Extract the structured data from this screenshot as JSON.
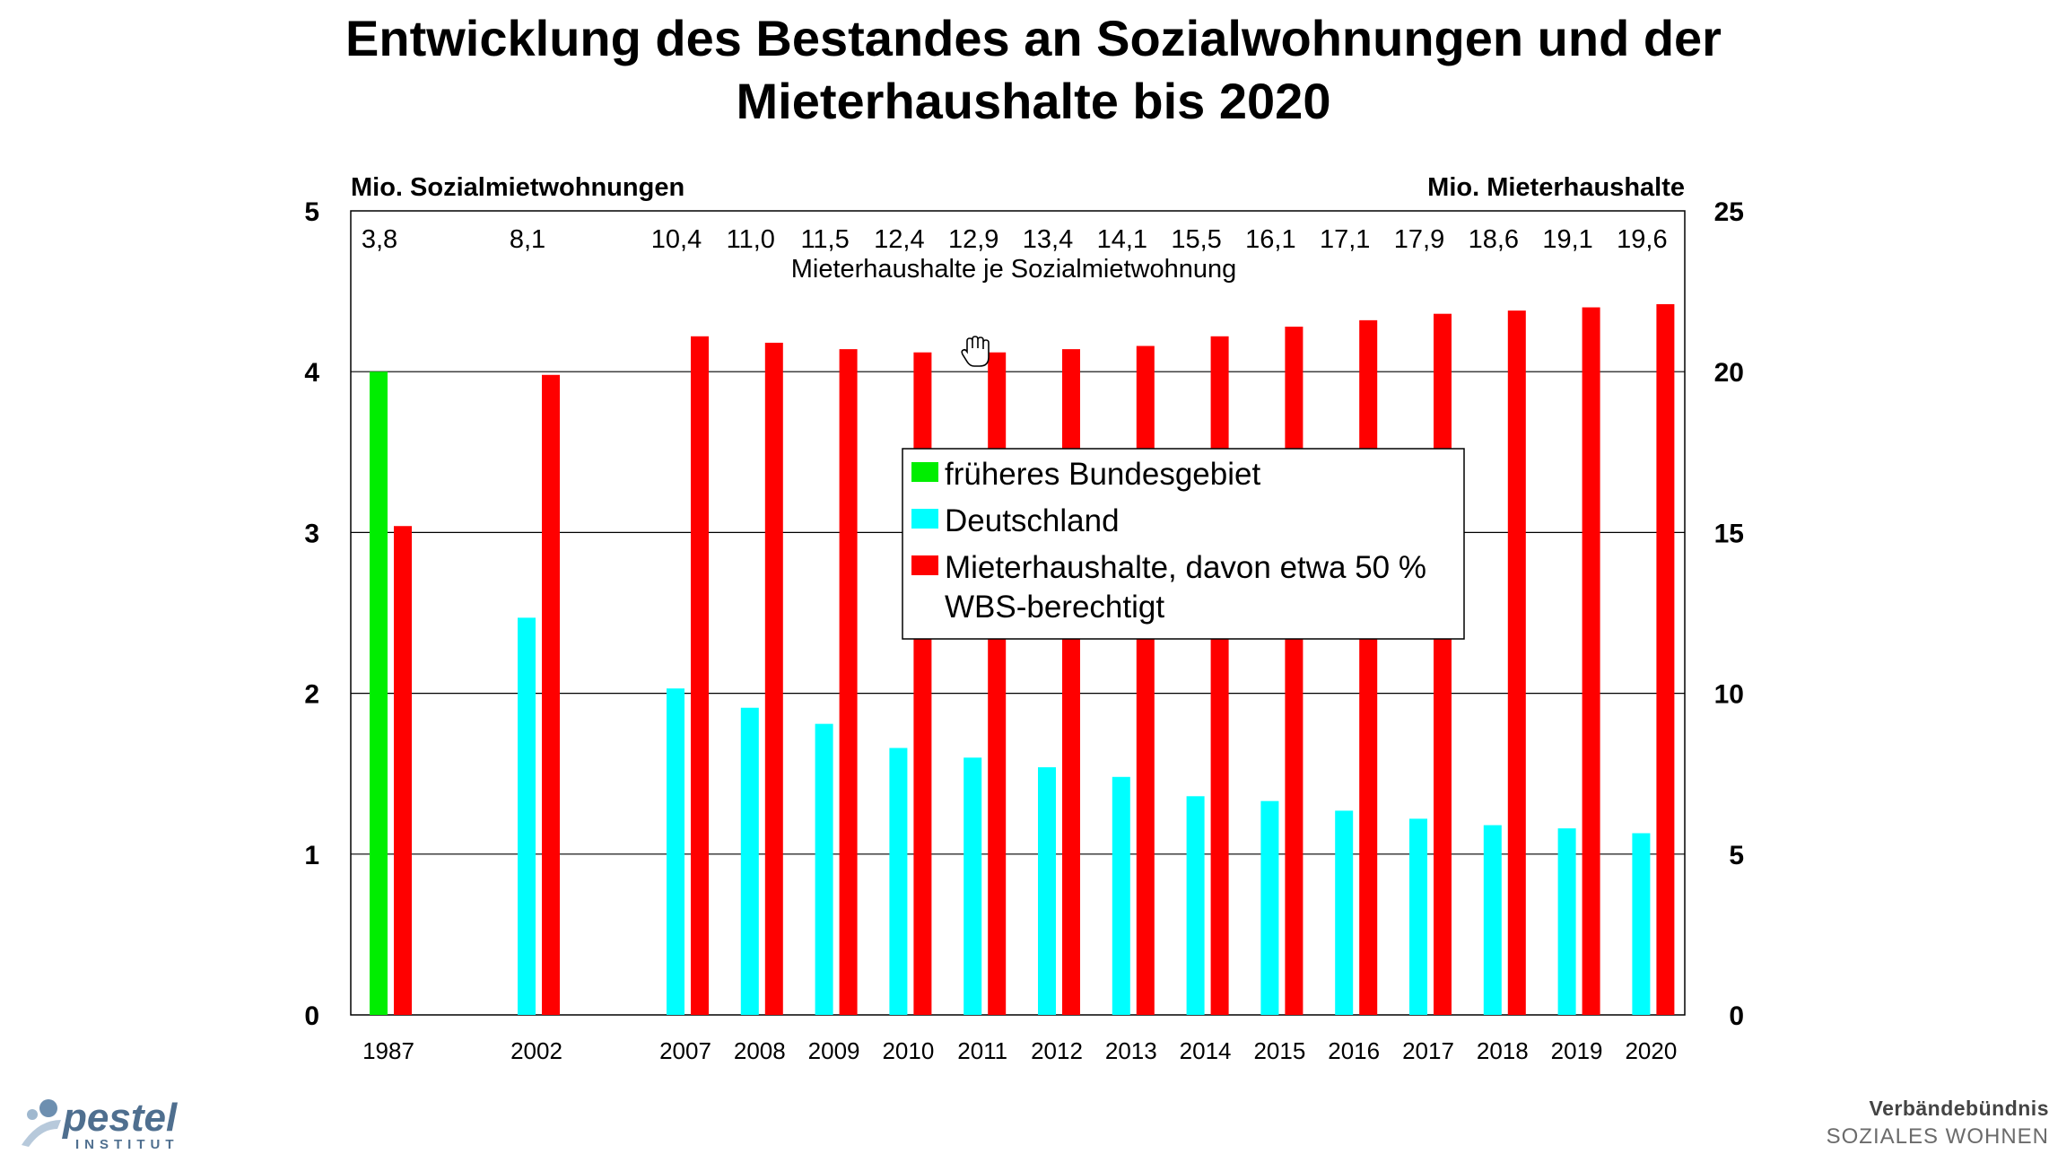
{
  "title_line1": "Entwicklung des Bestandes an Sozialwohnungen und der",
  "title_line2": "Mieterhaushalte bis 2020",
  "colors": {
    "frueheres": "#00ee00",
    "deutschland": "#00ffff",
    "mieter": "#ff0000",
    "grid": "#000000"
  },
  "chart_data": {
    "type": "bar",
    "left_axis_label": "Mio. Sozialmietwohnungen",
    "right_axis_label": "Mio. Mieterhaushalte",
    "left_ylim": [
      0,
      5
    ],
    "right_ylim": [
      0,
      25
    ],
    "left_ticks": [
      "0",
      "1",
      "2",
      "3",
      "4",
      "5"
    ],
    "right_ticks": [
      "0",
      "5",
      "10",
      "15",
      "20",
      "25"
    ],
    "grid": true,
    "categories": [
      "1987",
      "2002",
      "2007",
      "2008",
      "2009",
      "2010",
      "2011",
      "2012",
      "2013",
      "2014",
      "2015",
      "2016",
      "2017",
      "2018",
      "2019",
      "2020"
    ],
    "series": [
      {
        "name": "früheres Bundesgebiet",
        "axis": "left",
        "color_key": "frueheres",
        "values": [
          4.0,
          null,
          null,
          null,
          null,
          null,
          null,
          null,
          null,
          null,
          null,
          null,
          null,
          null,
          null,
          null
        ]
      },
      {
        "name": "Deutschland",
        "axis": "left",
        "color_key": "deutschland",
        "values": [
          null,
          2.47,
          2.03,
          1.91,
          1.81,
          1.66,
          1.6,
          1.54,
          1.48,
          1.36,
          1.33,
          1.27,
          1.22,
          1.18,
          1.16,
          1.13
        ]
      },
      {
        "name": "Mieterhaushalte, davon etwa 50 % WBS-berechtigt",
        "legend_lines": [
          "Mieterhaushalte, davon etwa 50 %",
          "WBS-berechtigt"
        ],
        "axis": "right",
        "color_key": "mieter",
        "values": [
          15.2,
          19.9,
          21.1,
          20.9,
          20.7,
          20.6,
          20.6,
          20.7,
          20.8,
          21.1,
          21.4,
          21.6,
          21.8,
          21.9,
          22.0,
          22.1
        ]
      }
    ],
    "ratio_label": "Mieterhaushalte je Sozialmietwohnung",
    "ratios": [
      "3,8",
      "8,1",
      "10,4",
      "11,0",
      "11,5",
      "12,4",
      "12,9",
      "13,4",
      "14,1",
      "15,5",
      "16,1",
      "17,1",
      "17,9",
      "18,6",
      "19,1",
      "19,6"
    ],
    "legend_position": "center"
  },
  "logo_left": "pestel",
  "logo_left_sub": "INSTITUT",
  "logo_right_line1": "Verbändebündnis",
  "logo_right_line2": "SOZIALES WOHNEN"
}
